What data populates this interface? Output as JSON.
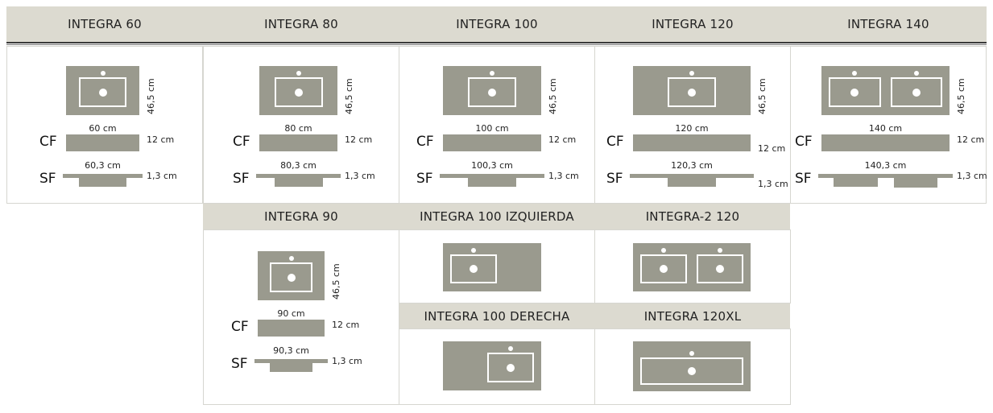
{
  "colors": {
    "header_band": "#dcdad0",
    "plate": "#9a9a8e",
    "divider": "#3a3a3a"
  },
  "top_headers": [
    "INTEGRA 60",
    "INTEGRA 80",
    "INTEGRA 100",
    "INTEGRA 120",
    "INTEGRA 140"
  ],
  "specs": [
    {
      "name": "INTEGRA 60",
      "depth": "46,5 cm",
      "cf_width": "60 cm",
      "cf_height": "12 cm",
      "sf_width": "60,3 cm",
      "sf_height": "1,3 cm",
      "cf_label": "CF",
      "sf_label": "SF",
      "basins": 1
    },
    {
      "name": "INTEGRA 80",
      "depth": "46,5 cm",
      "cf_width": "80 cm",
      "cf_height": "12 cm",
      "sf_width": "80,3 cm",
      "sf_height": "1,3 cm",
      "cf_label": "CF",
      "sf_label": "SF",
      "basins": 1
    },
    {
      "name": "INTEGRA 100",
      "depth": "46,5 cm",
      "cf_width": "100 cm",
      "cf_height": "12 cm",
      "sf_width": "100,3 cm",
      "sf_height": "1,3 cm",
      "cf_label": "CF",
      "sf_label": "SF",
      "basins": 1
    },
    {
      "name": "INTEGRA 120",
      "depth": "46,5 cm",
      "cf_width": "120 cm",
      "cf_height": "12 cm",
      "sf_width": "120,3 cm",
      "sf_height": "1,3 cm",
      "cf_label": "CF",
      "sf_label": "SF",
      "basins": 1
    },
    {
      "name": "INTEGRA 140",
      "depth": "46,5 cm",
      "cf_width": "140 cm",
      "cf_height": "12 cm",
      "sf_width": "140,3 cm",
      "sf_height": "1,3 cm",
      "cf_label": "CF",
      "sf_label": "SF",
      "basins": 2
    },
    {
      "name": "INTEGRA 90",
      "depth": "46,5 cm",
      "cf_width": "90 cm",
      "cf_height": "12 cm",
      "sf_width": "90,3 cm",
      "sf_height": "1,3 cm",
      "cf_label": "CF",
      "sf_label": "SF",
      "basins": 1
    }
  ],
  "variants": [
    {
      "name": "INTEGRA 100 IZQUIERDA",
      "basin_position": "left"
    },
    {
      "name": "INTEGRA-2 120",
      "basin_position": "double"
    },
    {
      "name": "INTEGRA 100 DERECHA",
      "basin_position": "right"
    },
    {
      "name": "INTEGRA 120XL",
      "basin_position": "wide"
    }
  ]
}
